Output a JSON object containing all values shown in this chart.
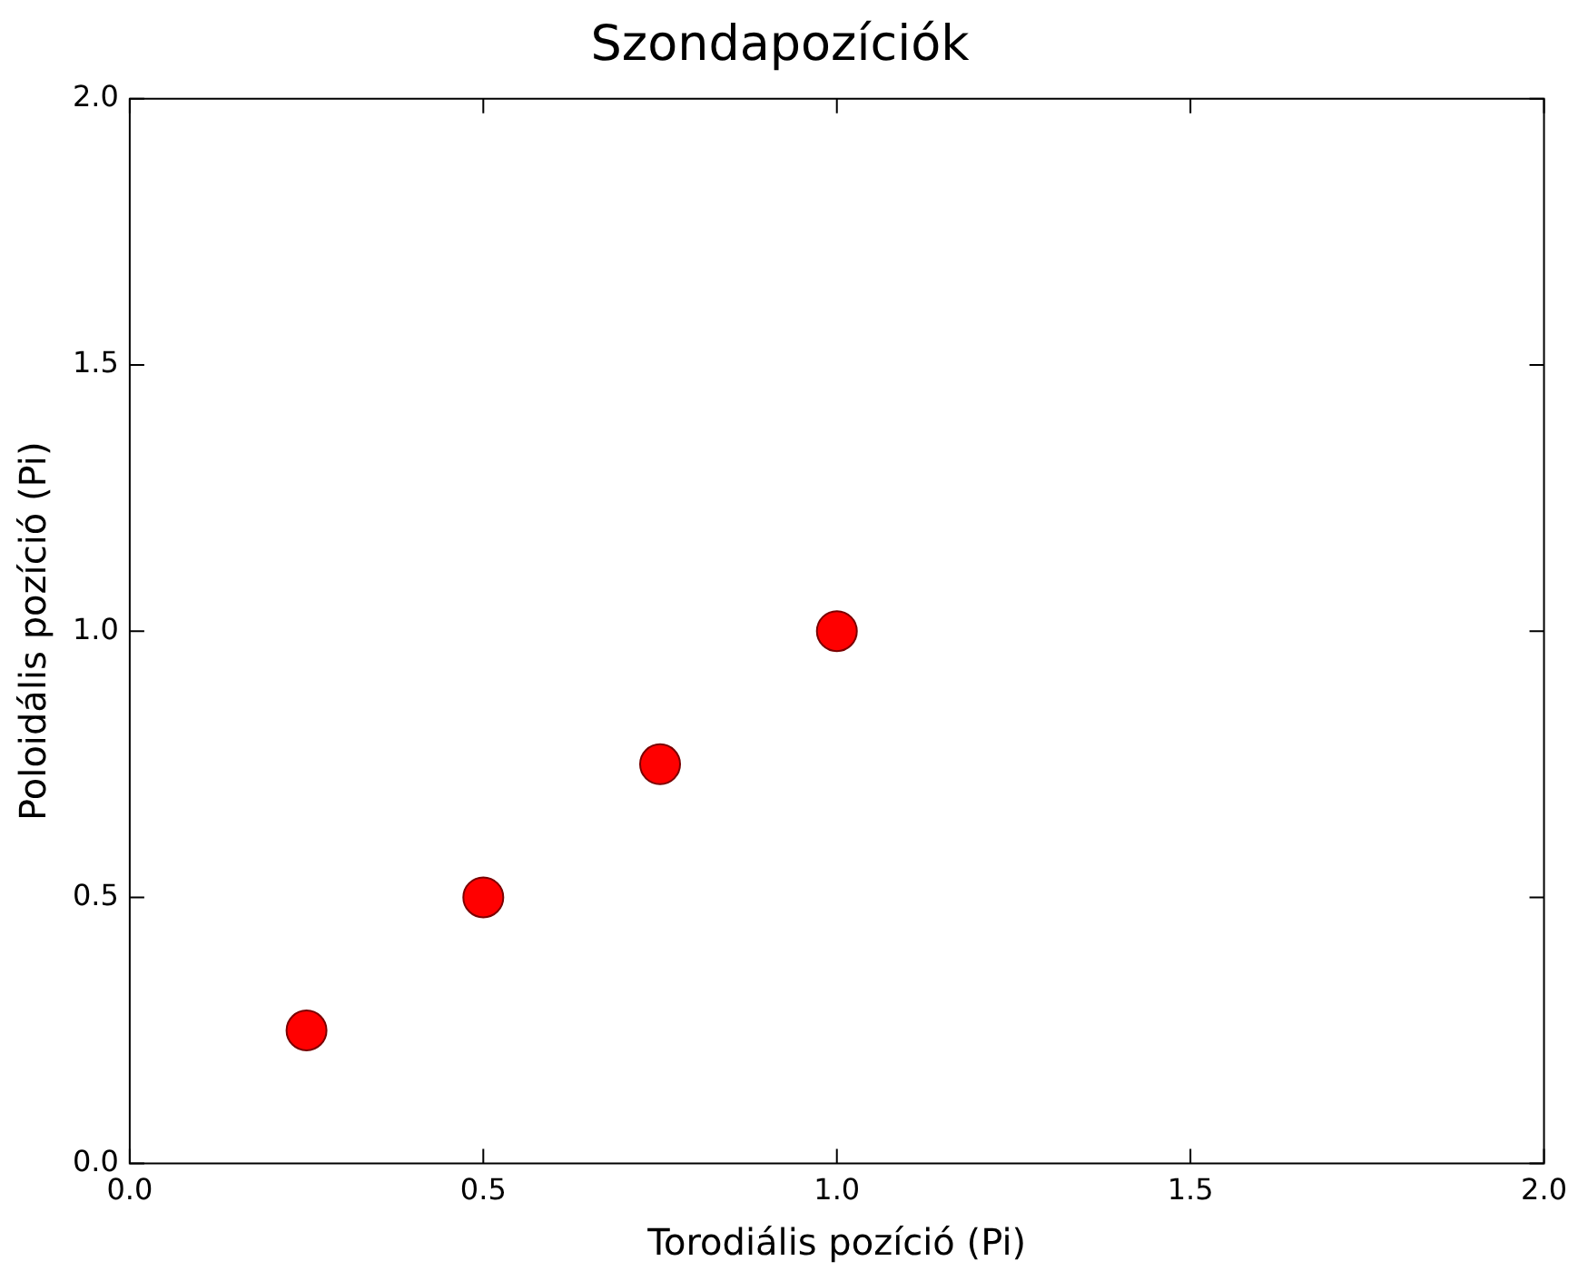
{
  "chart_data": {
    "type": "scatter",
    "title": "Szondapozíciók",
    "xlabel": "Torodiális pozíció (Pi)",
    "ylabel": "Poloidális pozíció (Pi)",
    "x": [
      0.25,
      0.5,
      0.75,
      1.0
    ],
    "series": [
      {
        "color": "#ff0000",
        "values": [
          0.25,
          0.5,
          0.75,
          1.0
        ]
      }
    ],
    "xlim": [
      0.0,
      2.0
    ],
    "xticks": [
      {
        "value": 0,
        "label": "0.0"
      },
      {
        "value": 0.5,
        "label": "0.5"
      },
      {
        "value": 1,
        "label": "1.0"
      },
      {
        "value": 1.5,
        "label": "1.5"
      },
      {
        "value": 2,
        "label": "2.0"
      }
    ],
    "ylim": [
      0.0,
      2.0
    ],
    "yticks": [
      {
        "value": 0,
        "label": "0.0"
      },
      {
        "value": 0.5,
        "label": "0.5"
      },
      {
        "value": 1,
        "label": "1.0"
      },
      {
        "value": 1.5,
        "label": "1.5"
      },
      {
        "value": 2,
        "label": "2.0"
      }
    ],
    "marker": "circle",
    "grid": false,
    "legend": false
  }
}
